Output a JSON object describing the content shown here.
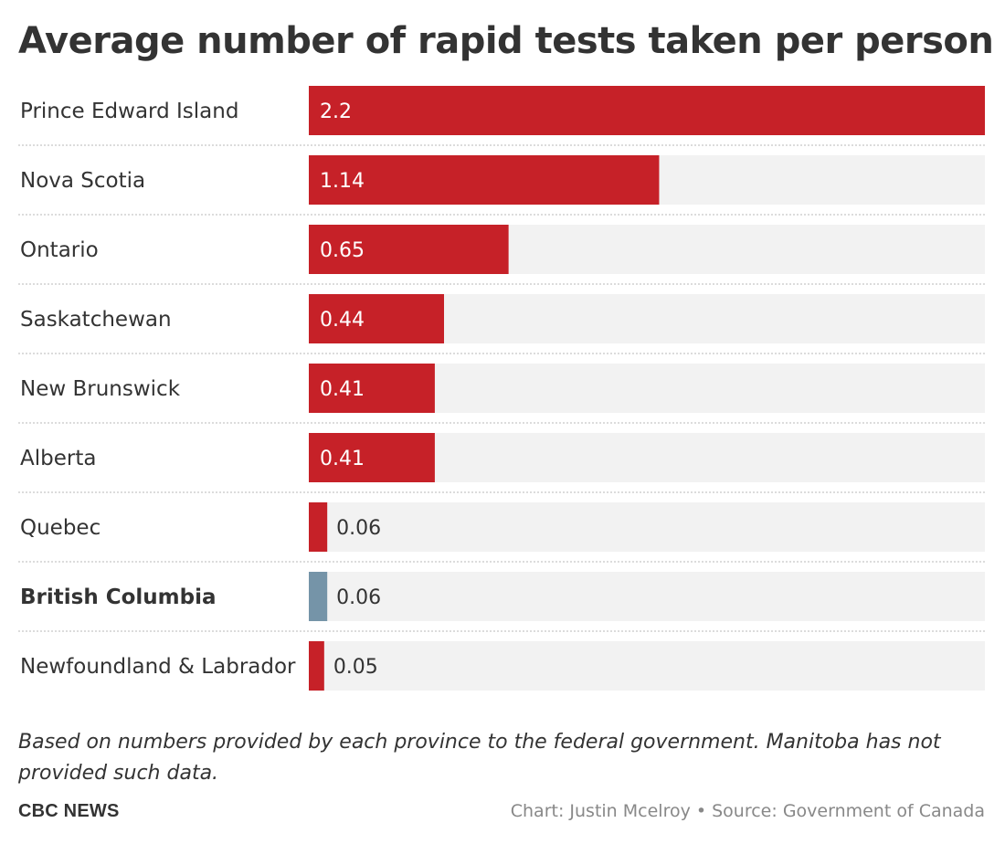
{
  "chart_data": {
    "type": "bar",
    "orientation": "horizontal",
    "title": "Average number of rapid tests taken per person",
    "categories": [
      "Prince Edward Island",
      "Nova Scotia",
      "Ontario",
      "Saskatchewan",
      "New Brunswick",
      "Alberta",
      "Quebec",
      "British Columbia",
      "Newfoundland & Labrador"
    ],
    "values": [
      2.2,
      1.14,
      0.65,
      0.44,
      0.41,
      0.41,
      0.06,
      0.06,
      0.05
    ],
    "value_labels": [
      "2.2",
      "1.14",
      "0.65",
      "0.44",
      "0.41",
      "0.41",
      "0.06",
      "0.06",
      "0.05"
    ],
    "highlighted_category": "British Columbia",
    "xlim": [
      0,
      2.2
    ],
    "grid": false,
    "colors": {
      "bar": "#c62128",
      "highlight": "#7594a8",
      "track": "#f2f2f2",
      "separator": "#d0d0d0"
    }
  },
  "footnote": "Based on numbers provided by each province to the federal government. Manitoba has not provided such data.",
  "brand": "CBC NEWS",
  "credit": "Chart: Justin Mcelroy • Source: Government of Canada"
}
